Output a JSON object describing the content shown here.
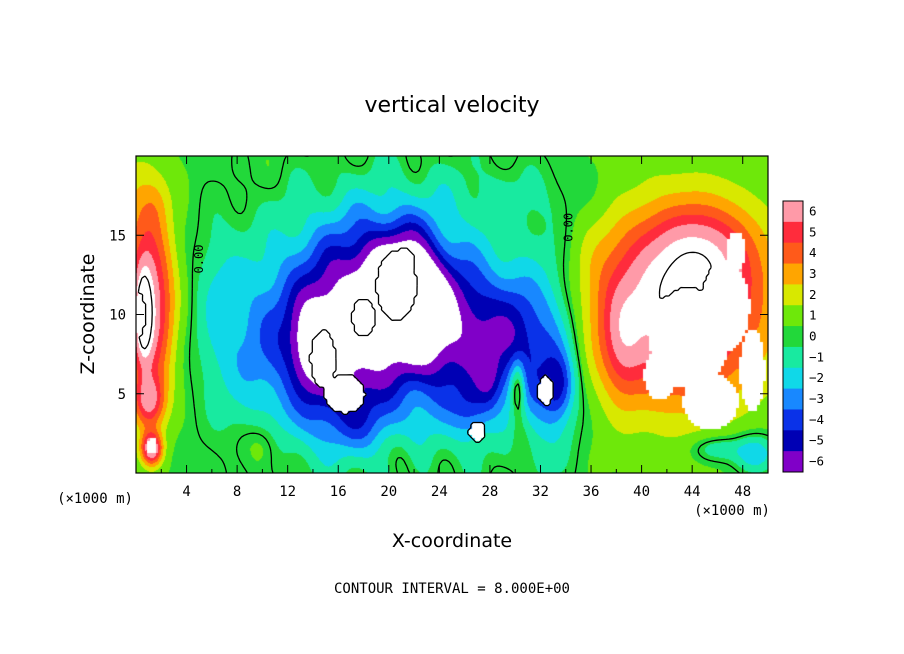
{
  "chart_data": {
    "type": "heatmap",
    "title": "vertical velocity",
    "xlabel": "X-coordinate",
    "ylabel": "Z-coordinate",
    "x_unit": "(×1000 m)",
    "z_unit": "(×1000 m)",
    "xlim": [
      0,
      50
    ],
    "ylim": [
      0,
      20
    ],
    "x_ticks": [
      4,
      8,
      12,
      16,
      20,
      24,
      28,
      32,
      36,
      40,
      44,
      48
    ],
    "y_ticks": [
      5,
      10,
      15
    ],
    "colorbar": {
      "levels": [
        6,
        5,
        4,
        3,
        2,
        1,
        0,
        -1,
        -2,
        -3,
        -4,
        -5,
        -6
      ],
      "labels": [
        "6",
        "5",
        "4",
        "3",
        "2",
        "1",
        "0",
        "−1",
        "−2",
        "−3",
        "−4",
        "−5",
        "−6"
      ],
      "colors": [
        "#ff9aa8",
        "#ff2c3c",
        "#ff5a1a",
        "#ffa500",
        "#d8e800",
        "#6ee80a",
        "#22d83a",
        "#18eaa0",
        "#10d8e8",
        "#1888ff",
        "#0a32e8",
        "#0000b4",
        "#8000c8"
      ]
    },
    "contour_labels": [
      {
        "text": "0.00",
        "x": 5,
        "z": 13.5
      },
      {
        "text": "0.00",
        "x": 34.2,
        "z": 15.5
      }
    ],
    "footer": "CONTOUR INTERVAL = 8.000E+00",
    "field": {
      "background": 0.4,
      "features": [
        {
          "x": 1.0,
          "z": 10.5,
          "sx": 2.0,
          "sz": 6.0,
          "a": 6.5
        },
        {
          "x": 0.6,
          "z": 10.0,
          "sx": 0.6,
          "sz": 2.6,
          "a": 5.0
        },
        {
          "x": 1.2,
          "z": 1.5,
          "sx": 0.8,
          "sz": 1.0,
          "a": 6.5
        },
        {
          "x": 1.0,
          "z": 4.5,
          "sx": 1.2,
          "sz": 1.6,
          "a": 4.0
        },
        {
          "x": 0.0,
          "z": 17.5,
          "sx": 2.0,
          "sz": 3.0,
          "a": 1.0
        },
        {
          "x": 1.6,
          "z": 17.0,
          "sx": 1.0,
          "sz": 1.6,
          "a": 0.6
        },
        {
          "x": 18.8,
          "z": 9.0,
          "sx": 10.0,
          "sz": 7.5,
          "a": -4.0
        },
        {
          "x": 18.5,
          "z": 11.5,
          "sx": 6.0,
          "sz": 4.5,
          "a": -4.0
        },
        {
          "x": 9.5,
          "z": 7.5,
          "sx": 3.2,
          "sz": 5.0,
          "a": -1.5
        },
        {
          "x": 6.5,
          "z": 11.0,
          "sx": 1.6,
          "sz": 5.0,
          "a": -1.2
        },
        {
          "x": 16.0,
          "z": 7.0,
          "sx": 3.6,
          "sz": 3.6,
          "a": -3.5
        },
        {
          "x": 14.2,
          "z": 8.2,
          "sx": 1.8,
          "sz": 2.6,
          "a": -4.0
        },
        {
          "x": 20.6,
          "z": 11.6,
          "sx": 2.6,
          "sz": 3.6,
          "a": -4.5
        },
        {
          "x": 22.4,
          "z": 11.0,
          "sx": 1.8,
          "sz": 3.4,
          "a": -3.0
        },
        {
          "x": 23.8,
          "z": 9.0,
          "sx": 2.5,
          "sz": 4.0,
          "a": -3.0
        },
        {
          "x": 27.5,
          "z": 9.0,
          "sx": 2.8,
          "sz": 4.0,
          "a": -3.5
        },
        {
          "x": 26.5,
          "z": 4.0,
          "sx": 1.5,
          "sz": 2.0,
          "a": -2.5
        },
        {
          "x": 28.0,
          "z": 6.0,
          "sx": 1.0,
          "sz": 2.0,
          "a": -2.5
        },
        {
          "x": 32.5,
          "z": 7.5,
          "sx": 2.5,
          "sz": 6.0,
          "a": -4.0
        },
        {
          "x": 33.5,
          "z": 5.5,
          "sx": 1.2,
          "sz": 2.0,
          "a": -3.0
        },
        {
          "x": 30.0,
          "z": 8.0,
          "sx": 1.5,
          "sz": 4.0,
          "a": -2.0
        },
        {
          "x": 17.0,
          "z": 3.0,
          "sx": 4.5,
          "sz": 2.0,
          "a": -1.5
        },
        {
          "x": 10.0,
          "z": 1.8,
          "sx": 1.4,
          "sz": 1.6,
          "a": 1.6
        },
        {
          "x": 21.2,
          "z": 1.2,
          "sx": 1.2,
          "sz": 1.8,
          "a": 1.2
        },
        {
          "x": 30.2,
          "z": 5.5,
          "sx": 0.6,
          "sz": 1.8,
          "a": 4.0
        },
        {
          "x": 30.4,
          "z": 2.5,
          "sx": 0.8,
          "sz": 1.8,
          "a": 1.0
        },
        {
          "x": 42.8,
          "z": 10.5,
          "sx": 7.0,
          "sz": 6.0,
          "a": 7.5
        },
        {
          "x": 45.0,
          "z": 14.0,
          "sx": 4.0,
          "sz": 3.0,
          "a": 2.5
        },
        {
          "x": 38.5,
          "z": 8.0,
          "sx": 1.5,
          "sz": 3.5,
          "a": 2.0
        },
        {
          "x": 49.0,
          "z": 1.2,
          "sx": 1.6,
          "sz": 1.2,
          "a": -3.0
        },
        {
          "x": 46.0,
          "z": 1.5,
          "sx": 2.0,
          "sz": 0.8,
          "a": -2.0
        },
        {
          "x": 30.0,
          "z": 17.5,
          "sx": 8.0,
          "sz": 2.5,
          "a": -0.8
        }
      ],
      "white_blobs": [
        {
          "x": 14.8,
          "z": 7.2,
          "sx": 1.0,
          "sz": 1.8
        },
        {
          "x": 16.5,
          "z": 5.0,
          "sx": 1.6,
          "sz": 1.2
        },
        {
          "x": 18.0,
          "z": 9.8,
          "sx": 0.9,
          "sz": 1.2
        },
        {
          "x": 20.6,
          "z": 11.8,
          "sx": 1.6,
          "sz": 2.2
        },
        {
          "x": 21.2,
          "z": 13.2,
          "sx": 0.9,
          "sz": 1.0
        },
        {
          "x": 27.0,
          "z": 2.6,
          "sx": 0.6,
          "sz": 0.6
        },
        {
          "x": 32.4,
          "z": 5.2,
          "sx": 0.6,
          "sz": 0.9
        },
        {
          "x": 0.3,
          "z": 10.0,
          "sx": 0.5,
          "sz": 1.4
        },
        {
          "x": 1.2,
          "z": 1.7,
          "sx": 0.4,
          "sz": 0.5
        },
        {
          "x": 43.8,
          "z": 8.5,
          "sx": 3.2,
          "sz": 3.2
        },
        {
          "x": 46.6,
          "z": 10.5,
          "sx": 2.0,
          "sz": 2.8
        },
        {
          "x": 45.5,
          "z": 4.5,
          "sx": 2.2,
          "sz": 1.8
        },
        {
          "x": 41.5,
          "z": 6.2,
          "sx": 1.3,
          "sz": 1.6
        },
        {
          "x": 47.5,
          "z": 14.0,
          "sx": 0.8,
          "sz": 1.2
        },
        {
          "x": 48.8,
          "z": 6.5,
          "sx": 1.0,
          "sz": 2.6
        }
      ]
    }
  }
}
